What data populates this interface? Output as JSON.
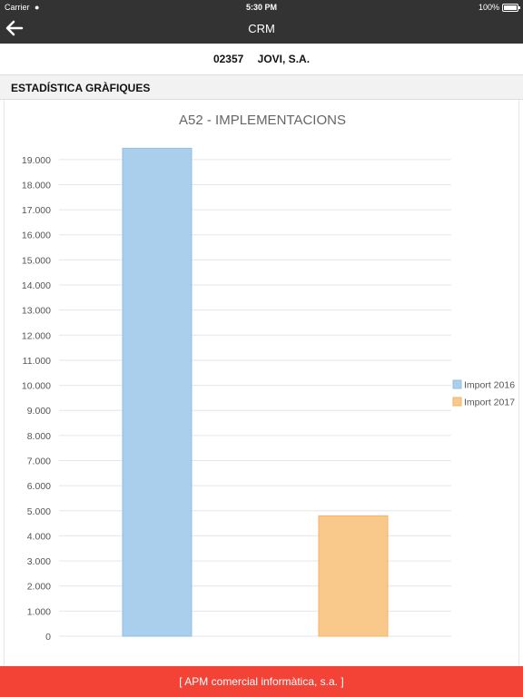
{
  "status_bar": {
    "carrier": "Carrier",
    "time": "5:30 PM",
    "battery_text": "100%",
    "battery_level": 1.0
  },
  "nav": {
    "title": "CRM",
    "back_icon": "arrow-left-icon"
  },
  "customer": {
    "code": "02357",
    "name": "JOVI, S.A."
  },
  "section": {
    "title": "ESTADÍSTICA GRÀFIQUES"
  },
  "footer": {
    "text": "[ APM comercial informàtica, s.a. ]"
  },
  "colors": {
    "bar_bg": "#333333",
    "footer": "#f24336",
    "series_2016_fill": "#a9cfec",
    "series_2016_stroke": "#8fbfe3",
    "series_2017_fill": "#f9c98b",
    "series_2017_stroke": "#f2b266",
    "grid": "#e6e6e6",
    "tick_text": "#555555",
    "title_text": "#666666"
  },
  "chart_data": {
    "type": "bar",
    "title": "A52 - IMPLEMENTACIONS",
    "categories": [
      ""
    ],
    "series": [
      {
        "name": "Import 2016",
        "values": [
          19450
        ]
      },
      {
        "name": "Import 2017",
        "values": [
          4800
        ]
      }
    ],
    "ylim": [
      0,
      19500
    ],
    "yticks": [
      0,
      1000,
      2000,
      3000,
      4000,
      5000,
      6000,
      7000,
      8000,
      9000,
      10000,
      11000,
      12000,
      13000,
      14000,
      15000,
      16000,
      17000,
      18000,
      19000
    ],
    "ytick_labels": [
      "0",
      "1.000",
      "2.000",
      "3.000",
      "4.000",
      "5.000",
      "6.000",
      "7.000",
      "8.000",
      "9.000",
      "10.000",
      "11.000",
      "12.000",
      "13.000",
      "14.000",
      "15.000",
      "16.000",
      "17.000",
      "18.000",
      "19.000"
    ],
    "grid": true,
    "legend": "right"
  }
}
